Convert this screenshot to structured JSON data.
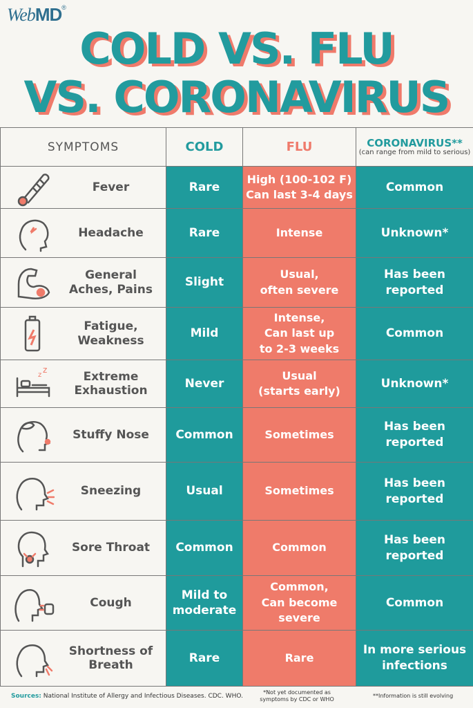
{
  "logo": {
    "web": "Web",
    "md": "MD",
    "reg": "®"
  },
  "title": {
    "line1": "COLD VS. FLU",
    "line2": "VS. CORONAVIRUS"
  },
  "header": {
    "symptoms": "SYMPTOMS",
    "cold": "COLD",
    "flu": "FLU",
    "coronavirus": "CORONAVIRUS**",
    "coronavirus_note": "(can range from mild to serious)"
  },
  "colors": {
    "teal": "#1f9b9c",
    "coral": "#ef7b6a",
    "background": "#f7f6f2",
    "text": "#555555"
  },
  "rows": [
    {
      "icon": "thermometer-icon",
      "symptom": "Fever",
      "cold": "Rare",
      "flu": "High (100-102 F)\nCan last 3-4 days",
      "coronavirus": "Common"
    },
    {
      "icon": "headache-icon",
      "symptom": "Headache",
      "cold": "Rare",
      "flu": "Intense",
      "coronavirus": "Unknown*"
    },
    {
      "icon": "muscle-ache-icon",
      "symptom": "General\nAches, Pains",
      "cold": "Slight",
      "flu": "Usual,\noften severe",
      "coronavirus": "Has been\nreported"
    },
    {
      "icon": "low-battery-icon",
      "symptom": "Fatigue,\nWeakness",
      "cold": "Mild",
      "flu": "Intense,\nCan last up\nto 2-3 weeks",
      "coronavirus": "Common"
    },
    {
      "icon": "sleeping-bed-icon",
      "symptom": "Extreme\nExhaustion",
      "cold": "Never",
      "flu": "Usual\n(starts early)",
      "coronavirus": "Unknown*"
    },
    {
      "icon": "stuffy-nose-icon",
      "symptom": "Stuffy Nose",
      "cold": "Common",
      "flu": "Sometimes",
      "coronavirus": "Has been\nreported"
    },
    {
      "icon": "sneezing-icon",
      "symptom": "Sneezing",
      "cold": "Usual",
      "flu": "Sometimes",
      "coronavirus": "Has been\nreported"
    },
    {
      "icon": "sore-throat-icon",
      "symptom": "Sore Throat",
      "cold": "Common",
      "flu": "Common",
      "coronavirus": "Has been\nreported"
    },
    {
      "icon": "cough-icon",
      "symptom": "Cough",
      "cold": "Mild to\nmoderate",
      "flu": "Common,\nCan become\nsevere",
      "coronavirus": "Common"
    },
    {
      "icon": "shortness-of-breath-icon",
      "symptom": "Shortness of\nBreath",
      "cold": "Rare",
      "flu": "Rare",
      "coronavirus": "In more serious\ninfections"
    }
  ],
  "footer": {
    "sources_label": "Sources:",
    "sources": "National Institute of Allergy and Infectious Diseases. CDC. WHO.",
    "note1": "*Not yet documented as symptoms by CDC or WHO",
    "note2": "**Information is still evolving"
  }
}
